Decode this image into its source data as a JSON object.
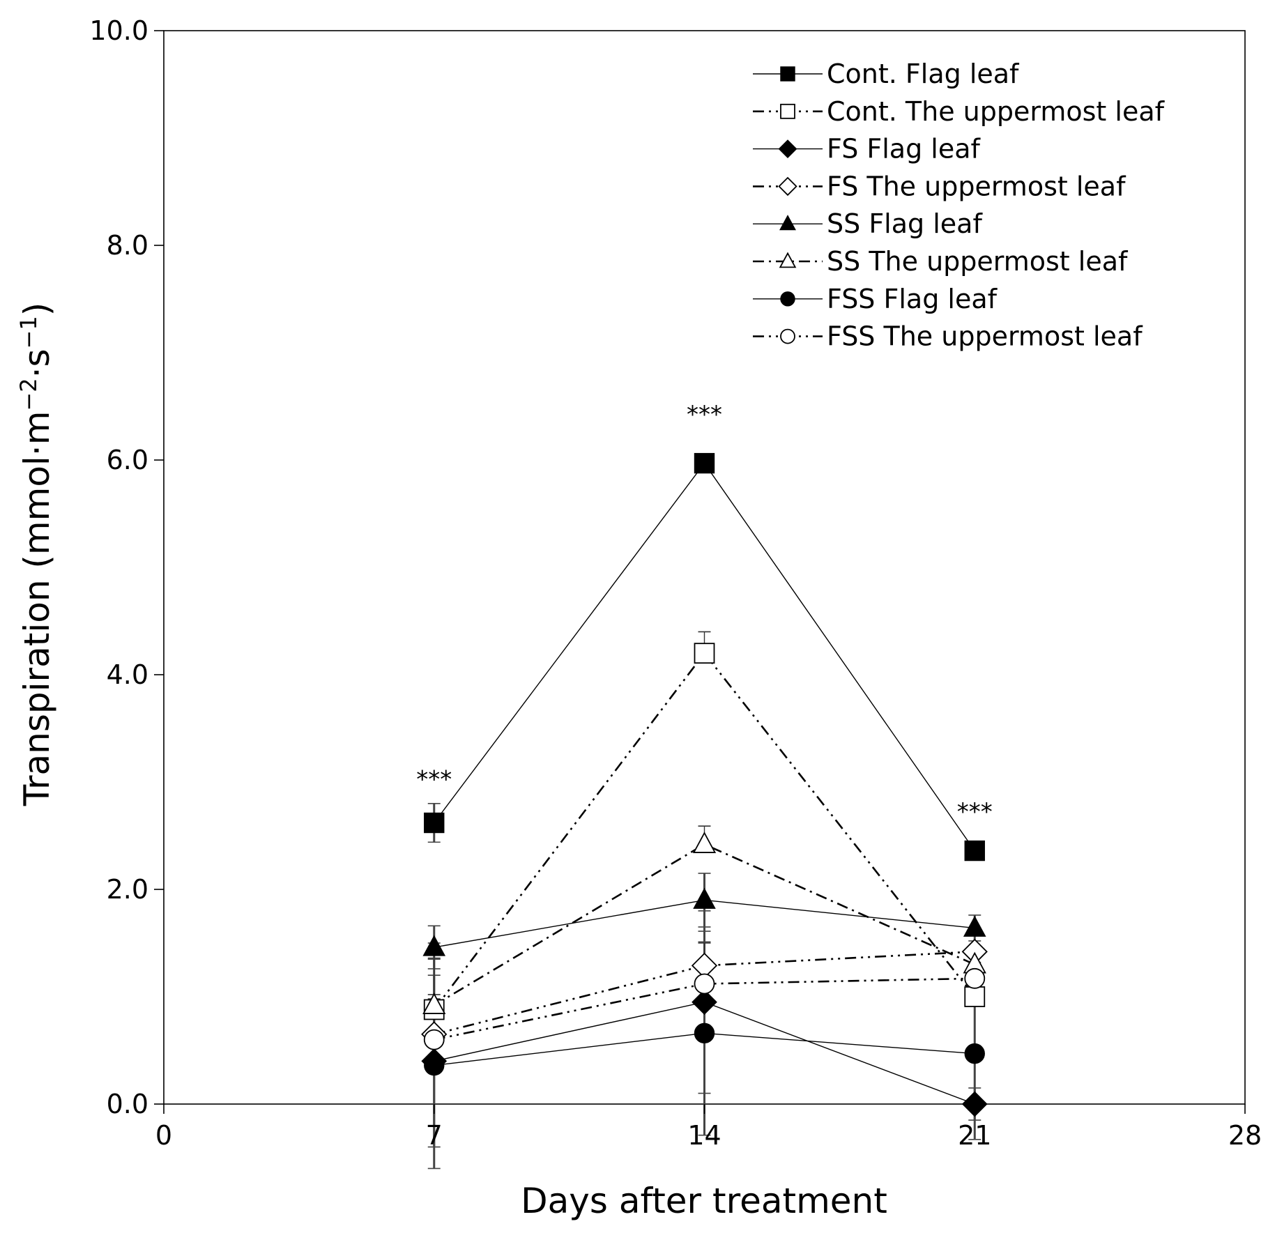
{
  "chart_data": {
    "type": "line",
    "title": "",
    "xlabel": "Days after treatment",
    "ylabel": {
      "text": "Transpiration (mmol·m",
      "sup1": "−2",
      "mid": "·s",
      "sup2": "−1",
      "end": ")"
    },
    "xlim": [
      0,
      28
    ],
    "ylim": [
      0,
      10
    ],
    "x_ticks": [
      0,
      7,
      14,
      21,
      28
    ],
    "x_tick_labels": [
      "0",
      "7",
      "14",
      "21",
      "28"
    ],
    "y_ticks": [
      0,
      2,
      4,
      6,
      8,
      10
    ],
    "y_tick_labels": [
      "0.0",
      "2.0",
      "4.0",
      "6.0",
      "8.0",
      "10.0"
    ],
    "legend_position": "top-right",
    "grid": false,
    "x": [
      7,
      14,
      21
    ],
    "series": [
      {
        "name": "Cont. Flag leaf",
        "marker": "square",
        "filled": true,
        "line": "solid",
        "values": [
          2.62,
          5.97,
          2.36
        ],
        "error": [
          0.18,
          0.08,
          0.05
        ]
      },
      {
        "name": "Cont. The uppermost leaf",
        "marker": "square",
        "filled": false,
        "line": "dashdotdot",
        "values": [
          0.88,
          4.2,
          1.0
        ],
        "error": [
          0.1,
          0.2,
          0.1
        ]
      },
      {
        "name": "FS Flag leaf",
        "marker": "diamond",
        "filled": true,
        "line": "solid",
        "values": [
          0.4,
          0.95,
          0.0
        ],
        "error": [
          0.8,
          0.85,
          0.15
        ]
      },
      {
        "name": "FS The uppermost leaf",
        "marker": "diamond",
        "filled": false,
        "line": "dashdotdot",
        "values": [
          0.65,
          1.29,
          1.42
        ],
        "error": [
          0.7,
          0.22,
          0.18
        ]
      },
      {
        "name": "SS Flag leaf",
        "marker": "triangle",
        "filled": true,
        "line": "solid",
        "values": [
          1.46,
          1.9,
          1.64
        ],
        "error": [
          0.2,
          0.25,
          0.12
        ]
      },
      {
        "name": "SS The uppermost leaf",
        "marker": "triangle",
        "filled": false,
        "line": "dashdot",
        "values": [
          0.92,
          2.42,
          1.3
        ],
        "error": [
          0.1,
          0.17,
          0.15
        ]
      },
      {
        "name": "FSS Flag leaf",
        "marker": "circle",
        "filled": true,
        "line": "solid",
        "values": [
          0.36,
          0.66,
          0.47
        ],
        "error": [
          1.0,
          0.95,
          0.8
        ]
      },
      {
        "name": "FSS The uppermost leaf",
        "marker": "circle",
        "filled": false,
        "line": "dashdotdot",
        "values": [
          0.6,
          1.12,
          1.17
        ],
        "error": [
          0.9,
          0.38,
          0.15
        ]
      }
    ],
    "annotations": [
      {
        "text": "***",
        "x": 7,
        "y": 2.95
      },
      {
        "text": "***",
        "x": 14,
        "y": 6.35
      },
      {
        "text": "***",
        "x": 21,
        "y": 2.65
      }
    ]
  }
}
